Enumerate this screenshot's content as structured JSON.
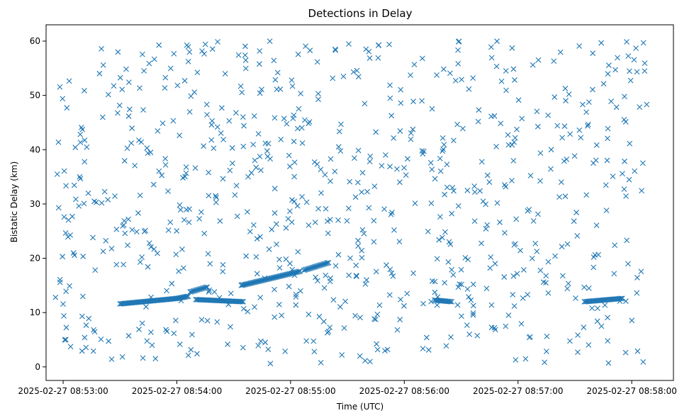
{
  "chart_data": {
    "type": "scatter",
    "title": "Detections in Delay",
    "xlabel": "Time (UTC)",
    "ylabel": "Bistatic Delay (km)",
    "date": "2025-02-27",
    "xlim": [
      "2025-02-27 08:52:51",
      "2025-02-27 08:58:22"
    ],
    "ylim": [
      -2.5,
      63
    ],
    "xticks": [
      "2025-02-27 08:53:00",
      "2025-02-27 08:54:00",
      "2025-02-27 08:55:00",
      "2025-02-27 08:56:00",
      "2025-02-27 08:57:00",
      "2025-02-27 08:58:00"
    ],
    "yticks": [
      0,
      10,
      20,
      30,
      40,
      50,
      60
    ],
    "marker": "x",
    "color": "#1f77b4",
    "grid": false,
    "legend": "none",
    "tracks": [
      {
        "start": {
          "time": "08:53:30",
          "delay": 11.6
        },
        "end": {
          "time": "08:54:00",
          "delay": 12.6
        }
      },
      {
        "start": {
          "time": "08:54:00",
          "delay": 12.6
        },
        "end": {
          "time": "08:54:06",
          "delay": 13.0
        }
      },
      {
        "start": {
          "time": "08:54:07",
          "delay": 13.8
        },
        "end": {
          "time": "08:54:16",
          "delay": 14.7
        }
      },
      {
        "start": {
          "time": "08:54:10",
          "delay": 12.4
        },
        "end": {
          "time": "08:54:35",
          "delay": 12.0
        }
      },
      {
        "start": {
          "time": "08:54:34",
          "delay": 15.0
        },
        "end": {
          "time": "08:55:05",
          "delay": 17.6
        }
      },
      {
        "start": {
          "time": "08:55:07",
          "delay": 17.8
        },
        "end": {
          "time": "08:55:20",
          "delay": 19.2
        }
      },
      {
        "start": {
          "time": "08:56:16",
          "delay": 12.3
        },
        "end": {
          "time": "08:56:25",
          "delay": 12.0
        }
      },
      {
        "start": {
          "time": "08:57:35",
          "delay": 12.0
        },
        "end": {
          "time": "08:57:55",
          "delay": 12.6
        }
      }
    ],
    "clutter_points": 780
  }
}
